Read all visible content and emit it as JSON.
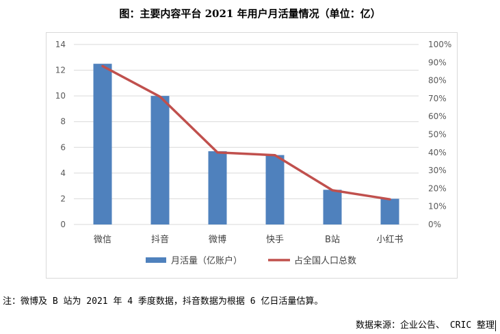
{
  "title": "图：主要内容平台 2021 年用户月活量情况（单位：亿）",
  "note": "注：微博及 B 站为 2021 年 4 季度数据，抖音数据为根据 6 亿日活量估算。",
  "source": "数据来源：企业公告、 CRIC 整理",
  "chart_data": {
    "type": "bar",
    "categories": [
      "微信",
      "抖音",
      "微博",
      "快手",
      "B站",
      "小红书"
    ],
    "series": [
      {
        "name": "月活量（亿账户）",
        "type": "bar",
        "axis": "left",
        "color": "#4f81bd",
        "values": [
          12.5,
          10.0,
          5.7,
          5.4,
          2.7,
          2.0
        ]
      },
      {
        "name": "占全国人口总数",
        "type": "line",
        "axis": "right",
        "color": "#c0504d",
        "values": [
          0.88,
          0.71,
          0.4,
          0.385,
          0.19,
          0.14
        ]
      }
    ],
    "ylim_left": [
      0,
      14
    ],
    "yticks_left": [
      "0",
      "2",
      "4",
      "6",
      "8",
      "10",
      "12",
      "14"
    ],
    "ylim_right": [
      0,
      1.0
    ],
    "yticks_right": [
      "0%",
      "10%",
      "20%",
      "30%",
      "40%",
      "50%",
      "60%",
      "70%",
      "80%",
      "90%",
      "100%"
    ],
    "grid": true,
    "legend": "bottom"
  }
}
